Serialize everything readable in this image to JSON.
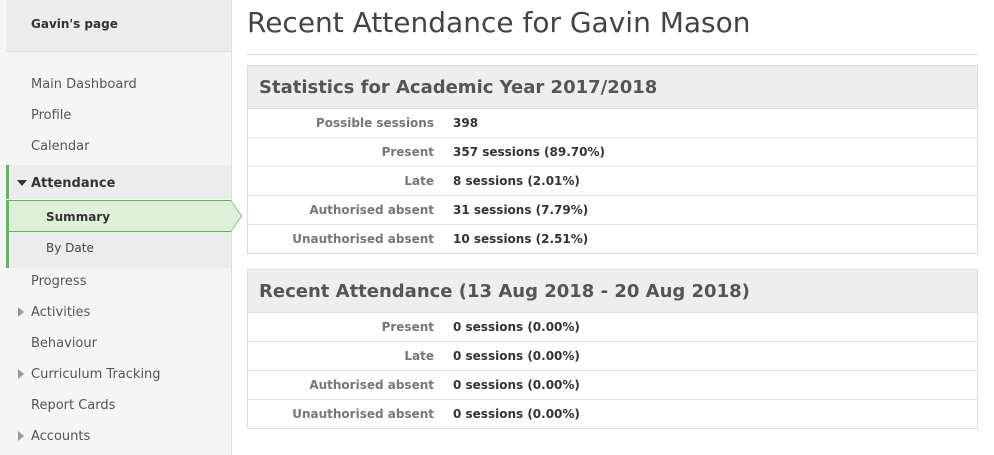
{
  "sidebar": {
    "header": "Gavin's page",
    "items": [
      {
        "label": "Main Dashboard"
      },
      {
        "label": "Profile"
      },
      {
        "label": "Calendar"
      },
      {
        "label": "Attendance"
      },
      {
        "label": "Progress"
      },
      {
        "label": "Activities"
      },
      {
        "label": "Behaviour"
      },
      {
        "label": "Curriculum Tracking"
      },
      {
        "label": "Report Cards"
      },
      {
        "label": "Accounts"
      }
    ],
    "attendance_sub": [
      {
        "label": "Summary"
      },
      {
        "label": "By Date"
      }
    ]
  },
  "main": {
    "title": "Recent Attendance for Gavin Mason",
    "stats_panel": {
      "heading": "Statistics for Academic Year 2017/2018",
      "rows": [
        {
          "label": "Possible sessions",
          "value": "398"
        },
        {
          "label": "Present",
          "value": "357 sessions (89.70%)"
        },
        {
          "label": "Late",
          "value": "8 sessions (2.01%)"
        },
        {
          "label": "Authorised absent",
          "value": "31 sessions (7.79%)"
        },
        {
          "label": "Unauthorised absent",
          "value": "10 sessions (2.51%)"
        }
      ]
    },
    "recent_panel": {
      "heading": "Recent Attendance (13 Aug 2018 - 20 Aug 2018)",
      "rows": [
        {
          "label": "Present",
          "value": "0 sessions (0.00%)"
        },
        {
          "label": "Late",
          "value": "0 sessions (0.00%)"
        },
        {
          "label": "Authorised absent",
          "value": "0 sessions (0.00%)"
        },
        {
          "label": "Unauthorised absent",
          "value": "0 sessions (0.00%)"
        }
      ]
    }
  }
}
